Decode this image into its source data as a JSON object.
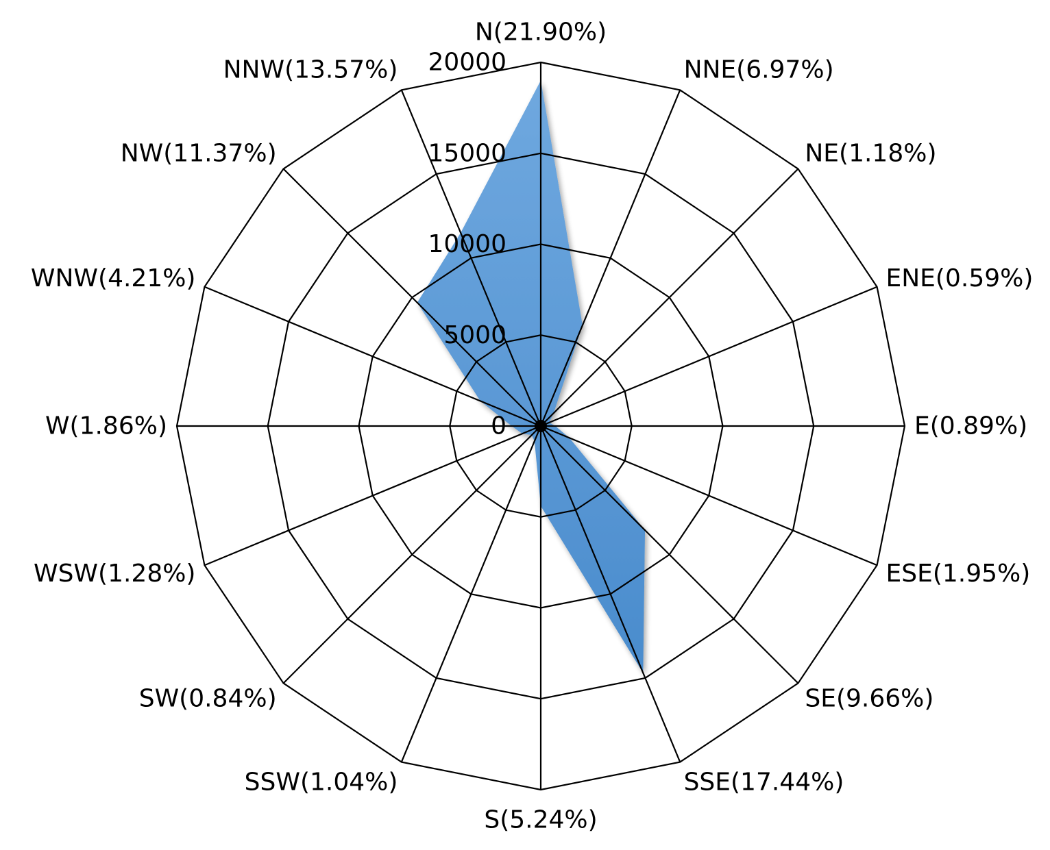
{
  "chart_data": {
    "type": "radar",
    "categories": [
      "N(21.90%)",
      "NNE(6.97%)",
      "NE(1.18%)",
      "ENE(0.59%)",
      "E(0.89%)",
      "ESE(1.95%)",
      "SE(9.66%)",
      "SSE(17.44%)",
      "S(5.24%)",
      "SSW(1.04%)",
      "SW(0.84%)",
      "WSW(1.28%)",
      "W(1.86%)",
      "WNW(4.21%)",
      "NW(11.37%)",
      "NNW(13.57%)"
    ],
    "values": [
      19000,
      6000,
      1000,
      500,
      800,
      1700,
      8100,
      14700,
      4400,
      900,
      700,
      1100,
      1600,
      3600,
      9600,
      11500
    ],
    "rlim": [
      0,
      20000
    ],
    "ticks": [
      0,
      5000,
      10000,
      15000,
      20000
    ],
    "tick_labels": [
      "0",
      "5000",
      "10000",
      "15000",
      "20000"
    ],
    "grid": true,
    "fill_color": "#5b9bd5",
    "fill_color_light": "#6fa8df",
    "line_color": "#000000"
  }
}
